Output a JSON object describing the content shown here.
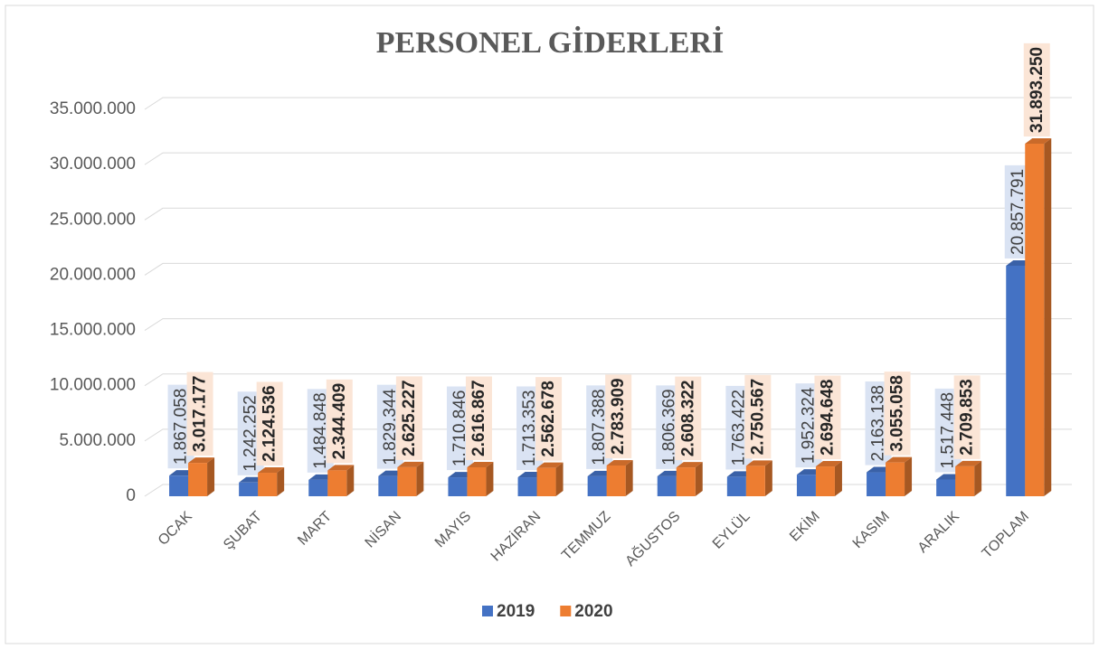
{
  "chart_data": {
    "type": "bar",
    "title": "PERSONEL GİDERLERİ",
    "categories": [
      "OCAK",
      "ŞUBAT",
      "MART",
      "NİSAN",
      "MAYIS",
      "HAZİRAN",
      "TEMMUZ",
      "AĞUSTOS",
      "EYLÜL",
      "EKİM",
      "KASIM",
      "ARALIK",
      "TOPLAM"
    ],
    "series": [
      {
        "name": "2019",
        "color": "#4472c4",
        "values": [
          1867058,
          1242252,
          1484848,
          1829344,
          1710846,
          1713353,
          1807388,
          1806369,
          1763422,
          1952324,
          2163138,
          1517448,
          20857791
        ],
        "value_labels": [
          "1.867.058",
          "1.242.252",
          "1.484.848",
          "1.829.344",
          "1.710.846",
          "1.713.353",
          "1.807.388",
          "1.806.369",
          "1.763.422",
          "1.952.324",
          "2.163.138",
          "1.517.448",
          "20.857.791"
        ]
      },
      {
        "name": "2020",
        "color": "#ed7d31",
        "values": [
          3017177,
          2124536,
          2344409,
          2625227,
          2616867,
          2562678,
          2783909,
          2608322,
          2750567,
          2694648,
          3055058,
          2709853,
          31893250
        ],
        "value_labels": [
          "3.017.177",
          "2.124.536",
          "2.344.409",
          "2.625.227",
          "2.616.867",
          "2.562.678",
          "2.783.909",
          "2.608.322",
          "2.750.567",
          "2.694.648",
          "3.055.058",
          "2.709.853",
          "31.893.250"
        ]
      }
    ],
    "ylim": [
      0,
      35000000
    ],
    "yticks": [
      0,
      {
        "value": 5000000,
        "label": "5.000.000"
      },
      {
        "value": 10000000,
        "label": "10.000.000"
      },
      {
        "value": 15000000,
        "label": "15.000.000"
      },
      {
        "value": 20000000,
        "label": "20.000.000"
      },
      {
        "value": 25000000,
        "label": "25.000.000"
      },
      {
        "value": 30000000,
        "label": "30.000.000"
      },
      {
        "value": 35000000,
        "label": "35.000.000"
      }
    ],
    "grid": true,
    "legend": "bottom"
  }
}
